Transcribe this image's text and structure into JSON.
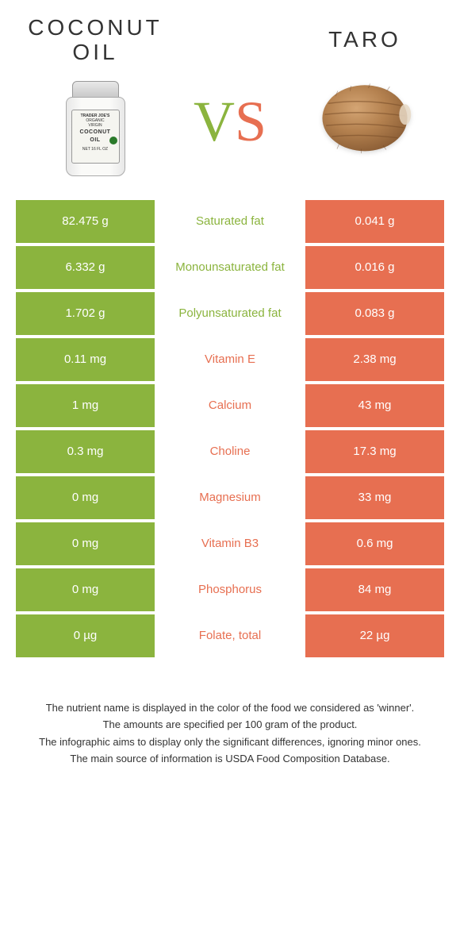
{
  "header": {
    "left_title": "COCONUT\nOIL",
    "right_title": "TARO",
    "vs_v": "V",
    "vs_s": "S"
  },
  "colors": {
    "green": "#8bb43e",
    "orange": "#e76f51",
    "text": "#333333",
    "background": "#ffffff"
  },
  "table": {
    "rows": [
      {
        "left": "82.475 g",
        "label": "Saturated fat",
        "right": "0.041 g",
        "winner": "green"
      },
      {
        "left": "6.332 g",
        "label": "Monounsaturated fat",
        "right": "0.016 g",
        "winner": "green"
      },
      {
        "left": "1.702 g",
        "label": "Polyunsaturated fat",
        "right": "0.083 g",
        "winner": "green"
      },
      {
        "left": "0.11 mg",
        "label": "Vitamin E",
        "right": "2.38 mg",
        "winner": "orange"
      },
      {
        "left": "1 mg",
        "label": "Calcium",
        "right": "43 mg",
        "winner": "orange"
      },
      {
        "left": "0.3 mg",
        "label": "Choline",
        "right": "17.3 mg",
        "winner": "orange"
      },
      {
        "left": "0 mg",
        "label": "Magnesium",
        "right": "33 mg",
        "winner": "orange"
      },
      {
        "left": "0 mg",
        "label": "Vitamin B3",
        "right": "0.6 mg",
        "winner": "orange"
      },
      {
        "left": "0 mg",
        "label": "Phosphorus",
        "right": "84 mg",
        "winner": "orange"
      },
      {
        "left": "0 µg",
        "label": "Folate, total",
        "right": "22 µg",
        "winner": "orange"
      }
    ]
  },
  "footer": {
    "line1": "The nutrient name is displayed in the color of the food we considered as 'winner'.",
    "line2": "The amounts are specified per 100 gram of the product.",
    "line3": "The infographic aims to display only the significant differences, ignoring minor ones.",
    "line4": "The main source of information is USDA Food Composition Database."
  },
  "jar_label": {
    "brand": "TRADER JOE'S",
    "l1": "ORGANIC",
    "l2": "VIRGIN",
    "big1": "COCONUT",
    "big2": "OIL",
    "net": "NET 16 FL OZ"
  }
}
